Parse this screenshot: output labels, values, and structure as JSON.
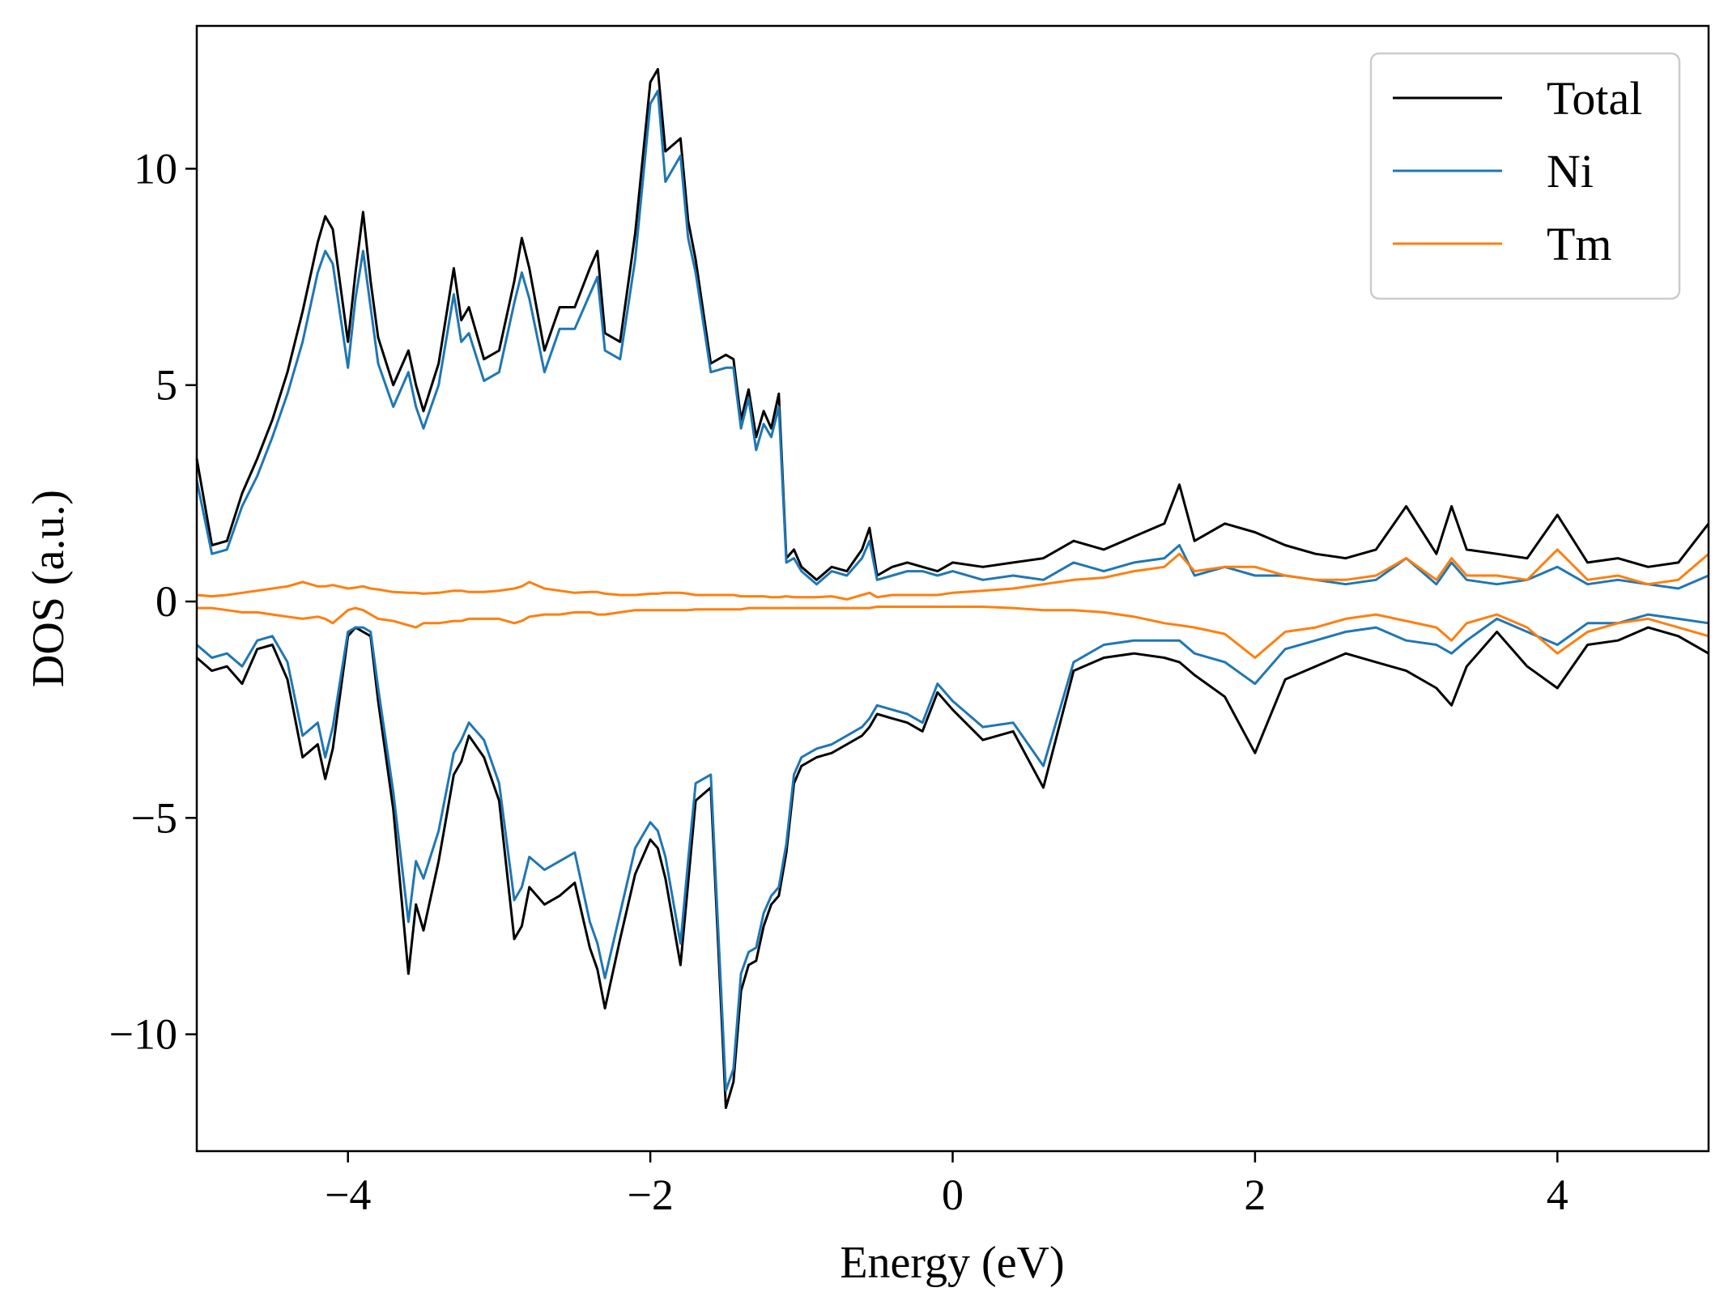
{
  "chart_data": {
    "type": "line",
    "title": "",
    "xlabel": "Energy (eV)",
    "ylabel": "DOS (a.u.)",
    "xlim": [
      -5,
      5
    ],
    "ylim": [
      -12.7,
      13.3
    ],
    "xticks": [
      -4,
      -2,
      0,
      2,
      4
    ],
    "xtick_labels": [
      "−4",
      "−2",
      "0",
      "2",
      "4"
    ],
    "yticks": [
      -10,
      -5,
      0,
      5,
      10
    ],
    "ytick_labels": [
      "−10",
      "−5",
      "0",
      "5",
      "10"
    ],
    "grid": false,
    "legend_position": "top-right",
    "series": [
      {
        "name": "Total",
        "color": "#000000",
        "x": [
          -5.0,
          -4.9,
          -4.8,
          -4.7,
          -4.6,
          -4.5,
          -4.4,
          -4.3,
          -4.2,
          -4.15,
          -4.1,
          -4.0,
          -3.95,
          -3.9,
          -3.85,
          -3.8,
          -3.7,
          -3.6,
          -3.55,
          -3.5,
          -3.4,
          -3.3,
          -3.25,
          -3.2,
          -3.1,
          -3.0,
          -2.9,
          -2.85,
          -2.8,
          -2.7,
          -2.6,
          -2.5,
          -2.4,
          -2.35,
          -2.3,
          -2.2,
          -2.1,
          -2.0,
          -1.95,
          -1.9,
          -1.8,
          -1.75,
          -1.7,
          -1.6,
          -1.5,
          -1.45,
          -1.4,
          -1.35,
          -1.3,
          -1.25,
          -1.2,
          -1.15,
          -1.1,
          -1.05,
          -1.0,
          -0.9,
          -0.8,
          -0.7,
          -0.6,
          -0.55,
          -0.5,
          -0.4,
          -0.3,
          -0.2,
          -0.1,
          0.0,
          0.2,
          0.4,
          0.6,
          0.8,
          1.0,
          1.2,
          1.4,
          1.5,
          1.6,
          1.8,
          2.0,
          2.2,
          2.4,
          2.6,
          2.8,
          3.0,
          3.2,
          3.3,
          3.4,
          3.6,
          3.8,
          4.0,
          4.2,
          4.4,
          4.6,
          4.8,
          5.0
        ],
        "y_up": [
          3.3,
          1.3,
          1.4,
          2.5,
          3.3,
          4.2,
          5.3,
          6.7,
          8.3,
          8.9,
          8.6,
          6.0,
          7.6,
          9.0,
          7.4,
          6.1,
          5.0,
          5.8,
          5.0,
          4.4,
          5.5,
          7.7,
          6.5,
          6.8,
          5.6,
          5.8,
          7.4,
          8.4,
          7.7,
          5.8,
          6.8,
          6.8,
          7.7,
          8.1,
          6.2,
          6.0,
          8.5,
          12.0,
          12.3,
          10.4,
          10.7,
          8.8,
          7.9,
          5.5,
          5.7,
          5.6,
          4.2,
          4.9,
          3.8,
          4.4,
          4.0,
          4.8,
          1.0,
          1.2,
          0.8,
          0.5,
          0.8,
          0.7,
          1.2,
          1.7,
          0.6,
          0.8,
          0.9,
          0.8,
          0.7,
          0.9,
          0.8,
          0.9,
          1.0,
          1.4,
          1.2,
          1.5,
          1.8,
          2.7,
          1.4,
          1.8,
          1.6,
          1.3,
          1.1,
          1.0,
          1.2,
          2.2,
          1.1,
          2.2,
          1.2,
          1.1,
          1.0,
          2.0,
          0.9,
          1.0,
          0.8,
          0.9,
          1.8
        ],
        "y_down": [
          -1.3,
          -1.6,
          -1.5,
          -1.9,
          -1.1,
          -1.0,
          -1.8,
          -3.6,
          -3.3,
          -4.1,
          -3.4,
          -0.8,
          -0.6,
          -0.7,
          -0.8,
          -2.3,
          -4.8,
          -8.6,
          -7.0,
          -7.6,
          -6.0,
          -4.0,
          -3.7,
          -3.1,
          -3.6,
          -4.6,
          -7.8,
          -7.5,
          -6.6,
          -7.0,
          -6.8,
          -6.5,
          -8.0,
          -8.5,
          -9.4,
          -7.8,
          -6.3,
          -5.5,
          -5.7,
          -6.4,
          -8.4,
          -6.5,
          -4.6,
          -4.3,
          -11.7,
          -11.1,
          -9.0,
          -8.4,
          -8.3,
          -7.5,
          -7.0,
          -6.8,
          -5.8,
          -4.2,
          -3.8,
          -3.6,
          -3.5,
          -3.3,
          -3.1,
          -2.9,
          -2.6,
          -2.7,
          -2.8,
          -3.0,
          -2.1,
          -2.5,
          -3.2,
          -3.0,
          -4.3,
          -1.6,
          -1.3,
          -1.2,
          -1.3,
          -1.4,
          -1.7,
          -2.2,
          -3.5,
          -1.8,
          -1.5,
          -1.2,
          -1.4,
          -1.6,
          -2.0,
          -2.4,
          -1.5,
          -0.7,
          -1.5,
          -2.0,
          -1.0,
          -0.9,
          -0.6,
          -0.8,
          -1.2
        ]
      },
      {
        "name": "Ni",
        "color": "#1f77b4",
        "x": [
          -5.0,
          -4.9,
          -4.8,
          -4.7,
          -4.6,
          -4.5,
          -4.4,
          -4.3,
          -4.2,
          -4.15,
          -4.1,
          -4.0,
          -3.95,
          -3.9,
          -3.85,
          -3.8,
          -3.7,
          -3.6,
          -3.55,
          -3.5,
          -3.4,
          -3.3,
          -3.25,
          -3.2,
          -3.1,
          -3.0,
          -2.9,
          -2.85,
          -2.8,
          -2.7,
          -2.6,
          -2.5,
          -2.4,
          -2.35,
          -2.3,
          -2.2,
          -2.1,
          -2.0,
          -1.95,
          -1.9,
          -1.8,
          -1.75,
          -1.7,
          -1.6,
          -1.5,
          -1.45,
          -1.4,
          -1.35,
          -1.3,
          -1.25,
          -1.2,
          -1.15,
          -1.1,
          -1.05,
          -1.0,
          -0.9,
          -0.8,
          -0.7,
          -0.6,
          -0.55,
          -0.5,
          -0.4,
          -0.3,
          -0.2,
          -0.1,
          0.0,
          0.2,
          0.4,
          0.6,
          0.8,
          1.0,
          1.2,
          1.4,
          1.5,
          1.6,
          1.8,
          2.0,
          2.2,
          2.4,
          2.6,
          2.8,
          3.0,
          3.2,
          3.3,
          3.4,
          3.6,
          3.8,
          4.0,
          4.2,
          4.4,
          4.6,
          4.8,
          5.0
        ],
        "y_up": [
          2.8,
          1.1,
          1.2,
          2.2,
          2.9,
          3.8,
          4.8,
          6.0,
          7.6,
          8.1,
          7.8,
          5.4,
          7.0,
          8.1,
          6.8,
          5.5,
          4.5,
          5.3,
          4.5,
          4.0,
          5.0,
          7.1,
          6.0,
          6.2,
          5.1,
          5.3,
          6.9,
          7.6,
          7.0,
          5.3,
          6.3,
          6.3,
          7.1,
          7.5,
          5.8,
          5.6,
          7.9,
          11.5,
          11.8,
          9.7,
          10.3,
          8.4,
          7.6,
          5.3,
          5.4,
          5.4,
          4.0,
          4.7,
          3.5,
          4.1,
          3.8,
          4.5,
          0.9,
          1.0,
          0.7,
          0.4,
          0.7,
          0.6,
          1.0,
          1.4,
          0.5,
          0.6,
          0.7,
          0.7,
          0.6,
          0.7,
          0.5,
          0.6,
          0.5,
          0.9,
          0.7,
          0.9,
          1.0,
          1.3,
          0.6,
          0.8,
          0.6,
          0.6,
          0.5,
          0.4,
          0.5,
          1.0,
          0.4,
          0.9,
          0.5,
          0.4,
          0.5,
          0.8,
          0.4,
          0.5,
          0.4,
          0.3,
          0.6
        ],
        "y_down": [
          -1.0,
          -1.3,
          -1.2,
          -1.5,
          -0.9,
          -0.8,
          -1.4,
          -3.1,
          -2.8,
          -3.6,
          -2.9,
          -0.7,
          -0.6,
          -0.6,
          -0.7,
          -2.0,
          -4.4,
          -7.4,
          -6.0,
          -6.4,
          -5.3,
          -3.5,
          -3.2,
          -2.8,
          -3.2,
          -4.2,
          -6.9,
          -6.6,
          -5.9,
          -6.2,
          -6.0,
          -5.8,
          -7.4,
          -7.9,
          -8.7,
          -7.2,
          -5.7,
          -5.1,
          -5.3,
          -5.9,
          -7.9,
          -6.0,
          -4.2,
          -4.0,
          -11.3,
          -10.8,
          -8.6,
          -8.1,
          -8.0,
          -7.2,
          -6.8,
          -6.6,
          -5.6,
          -4.0,
          -3.6,
          -3.4,
          -3.3,
          -3.1,
          -2.9,
          -2.7,
          -2.4,
          -2.5,
          -2.6,
          -2.8,
          -1.9,
          -2.3,
          -2.9,
          -2.8,
          -3.8,
          -1.4,
          -1.0,
          -0.9,
          -0.9,
          -0.9,
          -1.2,
          -1.4,
          -1.9,
          -1.1,
          -0.9,
          -0.7,
          -0.6,
          -0.9,
          -1.0,
          -1.2,
          -0.9,
          -0.4,
          -0.7,
          -1.0,
          -0.5,
          -0.5,
          -0.3,
          -0.4,
          -0.5
        ]
      },
      {
        "name": "Tm",
        "color": "#ff7f0e",
        "x": [
          -5.0,
          -4.9,
          -4.8,
          -4.7,
          -4.6,
          -4.5,
          -4.4,
          -4.3,
          -4.2,
          -4.15,
          -4.1,
          -4.0,
          -3.95,
          -3.9,
          -3.85,
          -3.8,
          -3.7,
          -3.6,
          -3.55,
          -3.5,
          -3.4,
          -3.3,
          -3.25,
          -3.2,
          -3.1,
          -3.0,
          -2.9,
          -2.85,
          -2.8,
          -2.7,
          -2.6,
          -2.5,
          -2.4,
          -2.35,
          -2.3,
          -2.2,
          -2.1,
          -2.0,
          -1.95,
          -1.9,
          -1.8,
          -1.75,
          -1.7,
          -1.6,
          -1.5,
          -1.45,
          -1.4,
          -1.35,
          -1.3,
          -1.25,
          -1.2,
          -1.15,
          -1.1,
          -1.05,
          -1.0,
          -0.9,
          -0.8,
          -0.7,
          -0.6,
          -0.55,
          -0.5,
          -0.4,
          -0.3,
          -0.2,
          -0.1,
          0.0,
          0.2,
          0.4,
          0.6,
          0.8,
          1.0,
          1.2,
          1.4,
          1.5,
          1.6,
          1.8,
          2.0,
          2.2,
          2.4,
          2.6,
          2.8,
          3.0,
          3.2,
          3.3,
          3.4,
          3.6,
          3.8,
          4.0,
          4.2,
          4.4,
          4.6,
          4.8,
          5.0
        ],
        "y_up": [
          0.15,
          0.12,
          0.15,
          0.2,
          0.25,
          0.3,
          0.35,
          0.45,
          0.35,
          0.35,
          0.38,
          0.3,
          0.32,
          0.35,
          0.3,
          0.28,
          0.22,
          0.2,
          0.2,
          0.18,
          0.2,
          0.25,
          0.25,
          0.22,
          0.22,
          0.25,
          0.3,
          0.35,
          0.45,
          0.3,
          0.25,
          0.2,
          0.22,
          0.22,
          0.18,
          0.15,
          0.15,
          0.18,
          0.18,
          0.2,
          0.2,
          0.18,
          0.15,
          0.15,
          0.15,
          0.15,
          0.12,
          0.12,
          0.12,
          0.12,
          0.1,
          0.1,
          0.12,
          0.1,
          0.1,
          0.1,
          0.12,
          0.05,
          0.15,
          0.2,
          0.1,
          0.15,
          0.15,
          0.15,
          0.15,
          0.2,
          0.25,
          0.3,
          0.4,
          0.5,
          0.55,
          0.7,
          0.8,
          1.1,
          0.7,
          0.8,
          0.8,
          0.6,
          0.5,
          0.5,
          0.6,
          1.0,
          0.5,
          1.0,
          0.6,
          0.6,
          0.5,
          1.2,
          0.5,
          0.6,
          0.4,
          0.5,
          1.1
        ],
        "y_down": [
          -0.15,
          -0.15,
          -0.2,
          -0.25,
          -0.25,
          -0.3,
          -0.35,
          -0.4,
          -0.35,
          -0.4,
          -0.5,
          -0.2,
          -0.15,
          -0.2,
          -0.3,
          -0.4,
          -0.45,
          -0.55,
          -0.6,
          -0.5,
          -0.5,
          -0.45,
          -0.45,
          -0.4,
          -0.4,
          -0.4,
          -0.5,
          -0.45,
          -0.35,
          -0.3,
          -0.3,
          -0.25,
          -0.25,
          -0.3,
          -0.3,
          -0.25,
          -0.2,
          -0.2,
          -0.2,
          -0.2,
          -0.2,
          -0.2,
          -0.18,
          -0.18,
          -0.18,
          -0.18,
          -0.18,
          -0.15,
          -0.15,
          -0.15,
          -0.15,
          -0.15,
          -0.15,
          -0.15,
          -0.15,
          -0.15,
          -0.15,
          -0.15,
          -0.15,
          -0.15,
          -0.12,
          -0.12,
          -0.12,
          -0.12,
          -0.12,
          -0.12,
          -0.12,
          -0.15,
          -0.2,
          -0.2,
          -0.25,
          -0.35,
          -0.5,
          -0.55,
          -0.6,
          -0.75,
          -1.3,
          -0.7,
          -0.6,
          -0.4,
          -0.3,
          -0.45,
          -0.6,
          -0.9,
          -0.5,
          -0.3,
          -0.6,
          -1.2,
          -0.7,
          -0.5,
          -0.4,
          -0.6,
          -0.8
        ]
      }
    ]
  }
}
